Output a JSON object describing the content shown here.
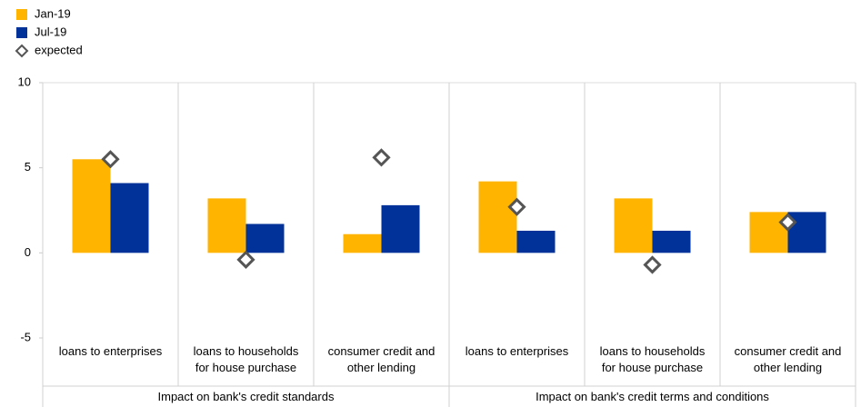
{
  "chart_data": {
    "type": "bar",
    "categories": [
      "loans to enterprises",
      "loans to households\nfor house purchase",
      "consumer credit and\nother lending",
      "loans to enterprises",
      "loans to households\nfor house purchase",
      "consumer credit and\nother lending"
    ],
    "groups": [
      "Impact on bank's credit standards",
      "Impact on bank's credit terms and conditions"
    ],
    "series": [
      {
        "name": "Jan-19",
        "color": "#ffb400",
        "values": [
          5.5,
          3.2,
          1.1,
          4.2,
          3.2,
          2.4
        ]
      },
      {
        "name": "Jul-19",
        "color": "#003299",
        "values": [
          4.1,
          1.7,
          2.8,
          1.3,
          1.3,
          2.4
        ]
      },
      {
        "name": "expected",
        "type": "diamond",
        "color": "#555555",
        "values": [
          5.5,
          -0.4,
          5.6,
          2.7,
          -0.7,
          1.8
        ]
      }
    ],
    "ylim": [
      -5,
      10
    ],
    "yticks": [
      -5,
      0,
      5,
      10
    ],
    "grid": false,
    "legend": "top-left"
  }
}
